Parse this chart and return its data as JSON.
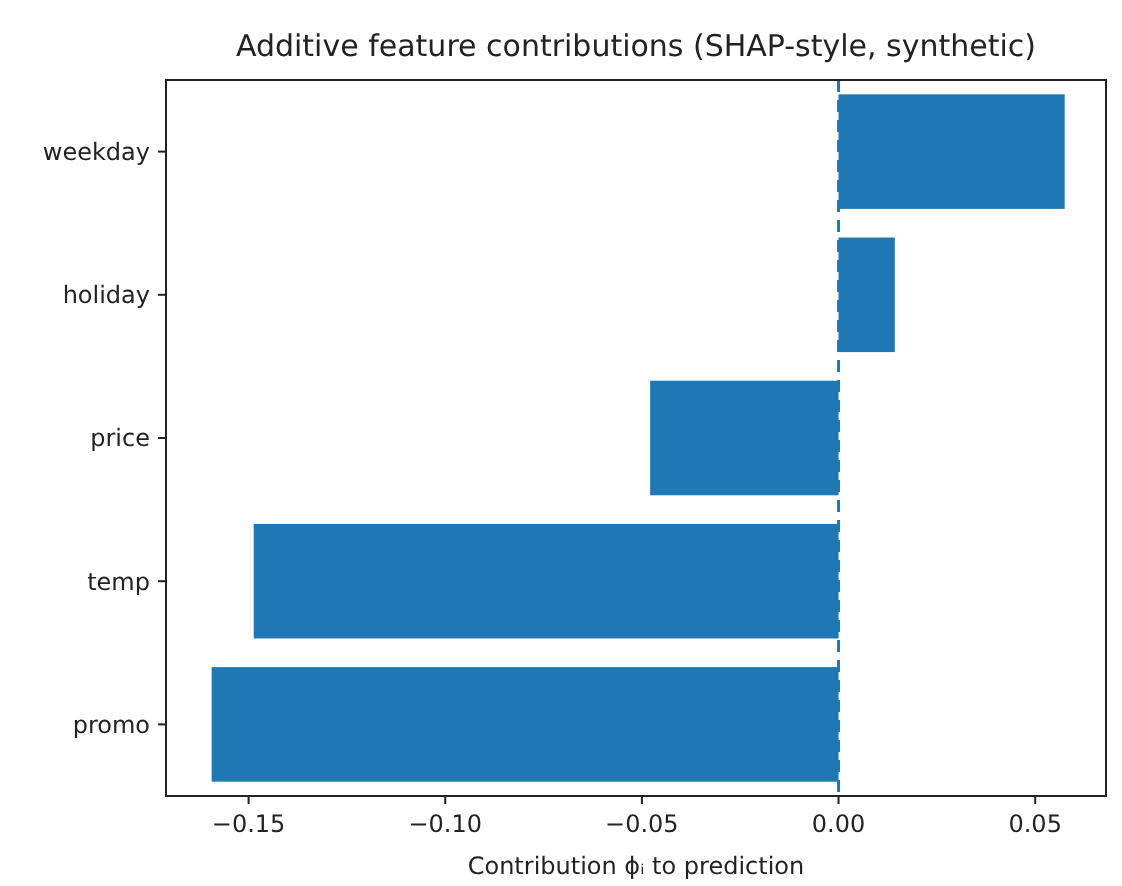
{
  "chart_data": {
    "type": "bar",
    "orientation": "horizontal",
    "title": "Additive feature contributions (SHAP-style, synthetic)",
    "xlabel": "Contribution ϕᵢ to prediction",
    "categories": [
      "weekday",
      "holiday",
      "price",
      "temp",
      "promo"
    ],
    "values": [
      0.0575,
      0.0143,
      -0.0479,
      -0.1487,
      -0.1594
    ],
    "color": "#1f77b4",
    "xlim": [
      -0.171,
      0.068
    ],
    "xticks": [
      {
        "value": -0.15,
        "label": "−0.15"
      },
      {
        "value": -0.1,
        "label": "−0.10"
      },
      {
        "value": -0.05,
        "label": "−0.05"
      },
      {
        "value": 0,
        "label": "0.00"
      },
      {
        "value": 0.05,
        "label": "0.05"
      }
    ],
    "ref_lines": [
      {
        "axis": "x",
        "value": 0,
        "color": "#1f77b4",
        "line_style": "dashed"
      }
    ],
    "grid": false
  }
}
